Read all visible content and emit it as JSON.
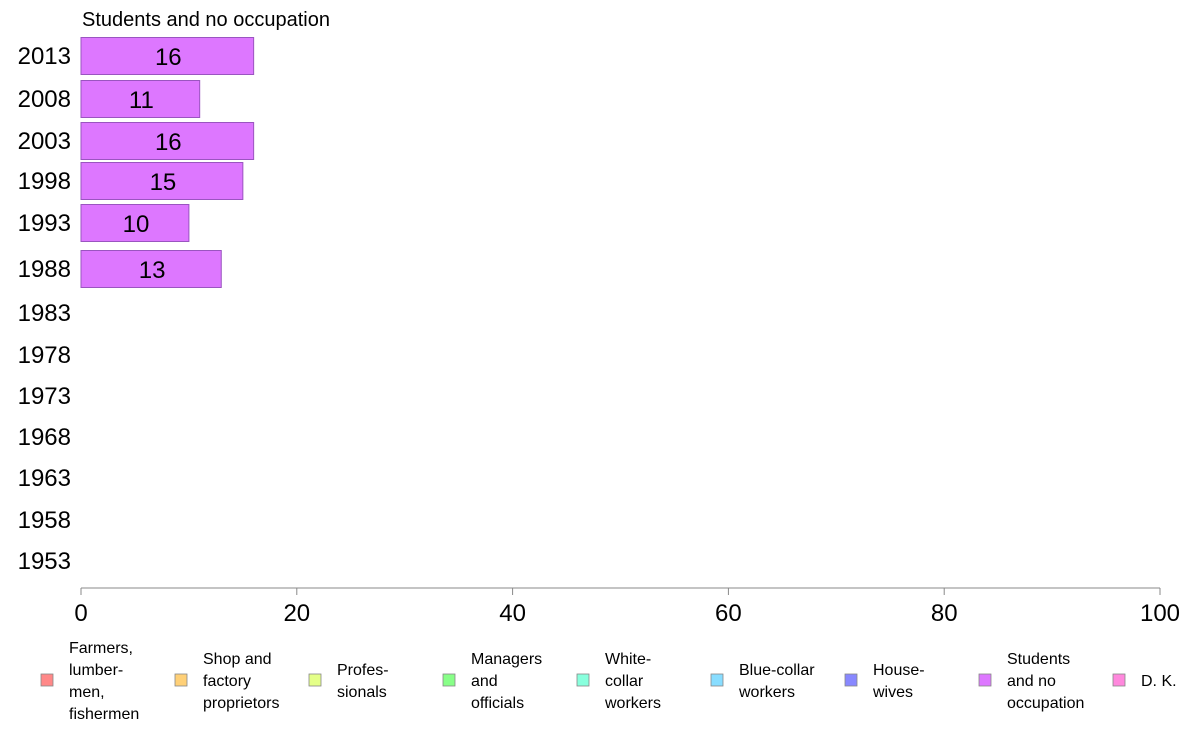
{
  "chart_data": {
    "type": "bar",
    "orientation": "horizontal",
    "title": "Students and no occupation",
    "categories": [
      "2013",
      "2008",
      "2003",
      "1998",
      "1993",
      "1988",
      "1983",
      "1978",
      "1973",
      "1968",
      "1963",
      "1958",
      "1953"
    ],
    "values": [
      16,
      11,
      16,
      15,
      10,
      13,
      null,
      null,
      null,
      null,
      null,
      null,
      null
    ],
    "bar_color": "#dd77ff",
    "xlim": [
      0,
      100
    ],
    "xticks": [
      0,
      20,
      40,
      60,
      80,
      100
    ],
    "xlabel": "",
    "ylabel": "",
    "grid": false,
    "legend_position": "bottom",
    "legend": [
      {
        "label": "Farmers, lumber- men, fishermen",
        "lines": [
          "Farmers,",
          "lumber-",
          "men,",
          "fishermen"
        ],
        "color": "#ff8888"
      },
      {
        "label": "Shop and factory proprietors",
        "lines": [
          "Shop and",
          "factory",
          "proprietors"
        ],
        "color": "#ffd077"
      },
      {
        "label": "Profes- sionals",
        "lines": [
          "Profes-",
          "sionals"
        ],
        "color": "#e4ff88"
      },
      {
        "label": "Managers and officials",
        "lines": [
          "Managers",
          "and",
          "officials"
        ],
        "color": "#88ff88"
      },
      {
        "label": "White- collar workers",
        "lines": [
          "White-",
          "collar",
          "workers"
        ],
        "color": "#88ffdd"
      },
      {
        "label": "Blue-collar workers",
        "lines": [
          "Blue-collar",
          "workers"
        ],
        "color": "#88ddff"
      },
      {
        "label": "House- wives",
        "lines": [
          "House-",
          "wives"
        ],
        "color": "#8888ff"
      },
      {
        "label": "Students and no occupation",
        "lines": [
          "Students",
          "and no",
          "occupation"
        ],
        "color": "#dd77ff"
      },
      {
        "label": "D. K.",
        "lines": [
          "D. K."
        ],
        "color": "#ff88dd"
      }
    ]
  }
}
